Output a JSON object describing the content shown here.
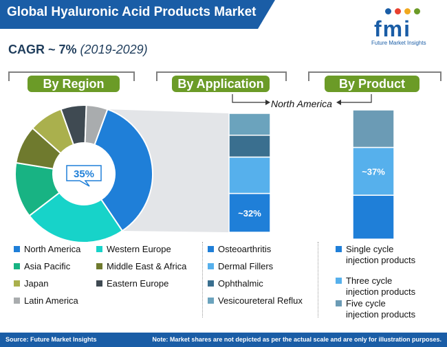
{
  "title": "Global Hyaluronic Acid Products Market",
  "cagr": {
    "label": "CAGR ~ 7%",
    "period": "(2019-2029)"
  },
  "logo": {
    "text": "fmi",
    "subtitle": "Future Market Insights"
  },
  "sections": [
    "By Region",
    "By Application",
    "By Product"
  ],
  "north_america_label": "North America",
  "colors": {
    "north_america": "#1f7fd8",
    "western_europe": "#17d3c9",
    "asia_pacific": "#18b383",
    "middle_east_africa": "#6f7a2e",
    "japan": "#aab04d",
    "eastern_europe": "#3f4a52",
    "latin_america": "#a9acae",
    "osteoarthritis": "#1f7fd8",
    "dermal_fillers": "#56b0ec",
    "ophthalmic": "#3a6f8f",
    "vesicoureteral_reflux": "#6ba3bd",
    "single_cycle": "#1f7fd8",
    "three_cycle": "#56b0ec",
    "five_cycle": "#6b9bb5",
    "header_band": "#1a5da6",
    "tab_green": "#6b9b27"
  },
  "chart_data": [
    {
      "type": "pie",
      "donut": true,
      "center_label": "35%",
      "categories": [
        "North America",
        "Western Europe",
        "Asia Pacific",
        "Middle East & Africa",
        "Japan",
        "Eastern Europe",
        "Latin America"
      ],
      "values": [
        35,
        24,
        13,
        9,
        8,
        6,
        5
      ]
    },
    {
      "type": "bar",
      "stacked": true,
      "categories": [
        "Osteoarthritis",
        "Dermal Fillers",
        "Ophthalmic",
        "Vesicoureteral Reflux"
      ],
      "values": [
        32,
        30,
        18,
        18
      ],
      "data_labels": [
        "~32%"
      ]
    },
    {
      "type": "bar",
      "stacked": true,
      "categories": [
        "Single cycle injection products",
        "Three cycle injection products",
        "Five cycle injection products"
      ],
      "values": [
        34,
        37,
        29
      ],
      "data_labels": [
        "~37%"
      ]
    }
  ],
  "legend_region": [
    "North America",
    "Western Europe",
    "Asia Pacific",
    "Middle East & Africa",
    "Japan",
    "Eastern Europe",
    "Latin America"
  ],
  "legend_application": [
    "Osteoarthritis",
    "Dermal Fillers",
    "Ophthalmic",
    "Vesicoureteral Reflux"
  ],
  "legend_product": [
    [
      "Single cycle",
      "injection products"
    ],
    [
      "Three cycle",
      "injection products"
    ],
    [
      "Five cycle",
      "injection products"
    ]
  ],
  "footer": {
    "source": "Source: Future Market Insights",
    "note": "Note: Market shares are not depicted as per the actual scale and are only for illustration purposes."
  }
}
